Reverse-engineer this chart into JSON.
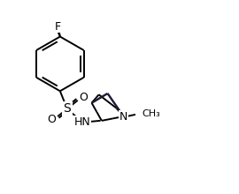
{
  "bg_color": "#ffffff",
  "line_color": "#000000",
  "line_width": 1.4,
  "font_size": 9,
  "fig_width": 2.7,
  "fig_height": 2.2,
  "dpi": 100,
  "xlim": [
    0,
    10
  ],
  "ylim": [
    0,
    8
  ]
}
